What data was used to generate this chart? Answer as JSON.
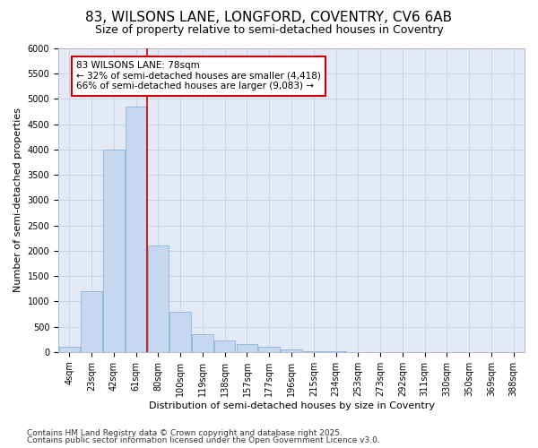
{
  "title_line1": "83, WILSONS LANE, LONGFORD, COVENTRY, CV6 6AB",
  "title_line2": "Size of property relative to semi-detached houses in Coventry",
  "xlabel": "Distribution of semi-detached houses by size in Coventry",
  "ylabel": "Number of semi-detached properties",
  "categories": [
    "4sqm",
    "23sqm",
    "42sqm",
    "61sqm",
    "80sqm",
    "100sqm",
    "119sqm",
    "138sqm",
    "157sqm",
    "177sqm",
    "196sqm",
    "215sqm",
    "234sqm",
    "253sqm",
    "273sqm",
    "292sqm",
    "311sqm",
    "330sqm",
    "350sqm",
    "369sqm",
    "388sqm"
  ],
  "values": [
    100,
    1200,
    4000,
    4850,
    2100,
    800,
    350,
    230,
    150,
    100,
    50,
    20,
    8,
    3,
    1,
    1,
    0,
    0,
    0,
    0,
    0
  ],
  "bar_color": "#c5d8f0",
  "bar_edge_color": "#8ab4d8",
  "subject_line_color": "#cc0000",
  "annotation_text": "83 WILSONS LANE: 78sqm\n← 32% of semi-detached houses are smaller (4,418)\n66% of semi-detached houses are larger (9,083) →",
  "annotation_box_color": "#ffffff",
  "annotation_box_edge": "#cc0000",
  "ylim": [
    0,
    6000
  ],
  "yticks": [
    0,
    500,
    1000,
    1500,
    2000,
    2500,
    3000,
    3500,
    4000,
    4500,
    5000,
    5500,
    6000
  ],
  "grid_color": "#c8d4e8",
  "background_color": "#e4eaf5",
  "footer_line1": "Contains HM Land Registry data © Crown copyright and database right 2025.",
  "footer_line2": "Contains public sector information licensed under the Open Government Licence v3.0.",
  "title_fontsize": 11,
  "subtitle_fontsize": 9,
  "annotation_fontsize": 7.5,
  "footer_fontsize": 6.5,
  "axis_label_fontsize": 8,
  "tick_fontsize": 7
}
